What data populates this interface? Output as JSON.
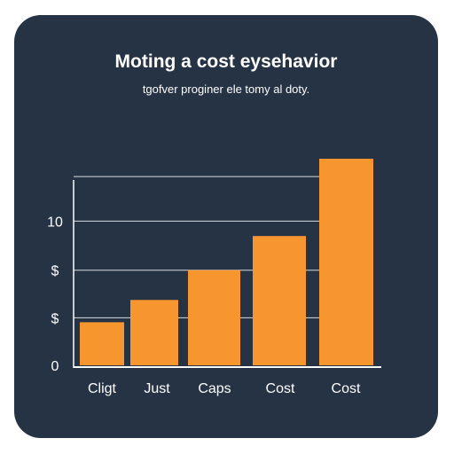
{
  "chart_data": {
    "type": "bar",
    "title": "Moting a cost eysehavior",
    "subtitle": "tgofver proginer ele tomy al doty.",
    "xlabel": "",
    "ylabel": "",
    "categories": [
      "Cligt",
      "Just",
      "Caps",
      "Cost",
      "Cost"
    ],
    "values": [
      2.9,
      4.4,
      6.4,
      8.7,
      13.9
    ],
    "ylim": [
      0,
      13.9
    ],
    "y_ticks": [
      {
        "value": 0,
        "label": "0"
      },
      {
        "value": 3.2,
        "label": "$"
      },
      {
        "value": 6.4,
        "label": "$"
      },
      {
        "value": 9.7,
        "label": "10"
      }
    ],
    "bar_color": "#f7952f",
    "background_color": "#253345",
    "grid": true
  }
}
